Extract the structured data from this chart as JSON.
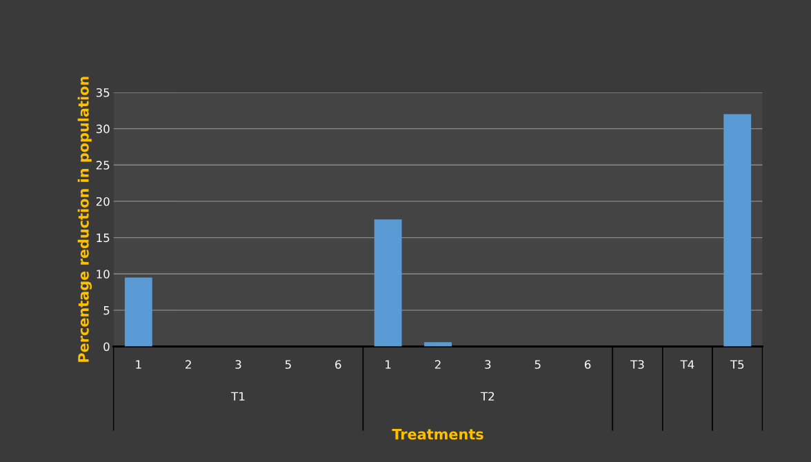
{
  "chart_data": {
    "type": "bar",
    "xlabel": "Treatments",
    "ylabel": "Percentage reduction in population",
    "categories": [
      "1",
      "2",
      "3",
      "5",
      "6",
      "1",
      "2",
      "3",
      "5",
      "6",
      "T3",
      "T4",
      "T5"
    ],
    "values": [
      9.5,
      0,
      0,
      0,
      0,
      17.5,
      0.6,
      0,
      0,
      0,
      0,
      0,
      32
    ],
    "color": "#5b9bd5",
    "ylim": [
      0,
      35
    ],
    "yticks": [
      0,
      5,
      10,
      15,
      20,
      25,
      30,
      35
    ],
    "grid": "y",
    "annotations": [
      "T1",
      "T2"
    ]
  }
}
